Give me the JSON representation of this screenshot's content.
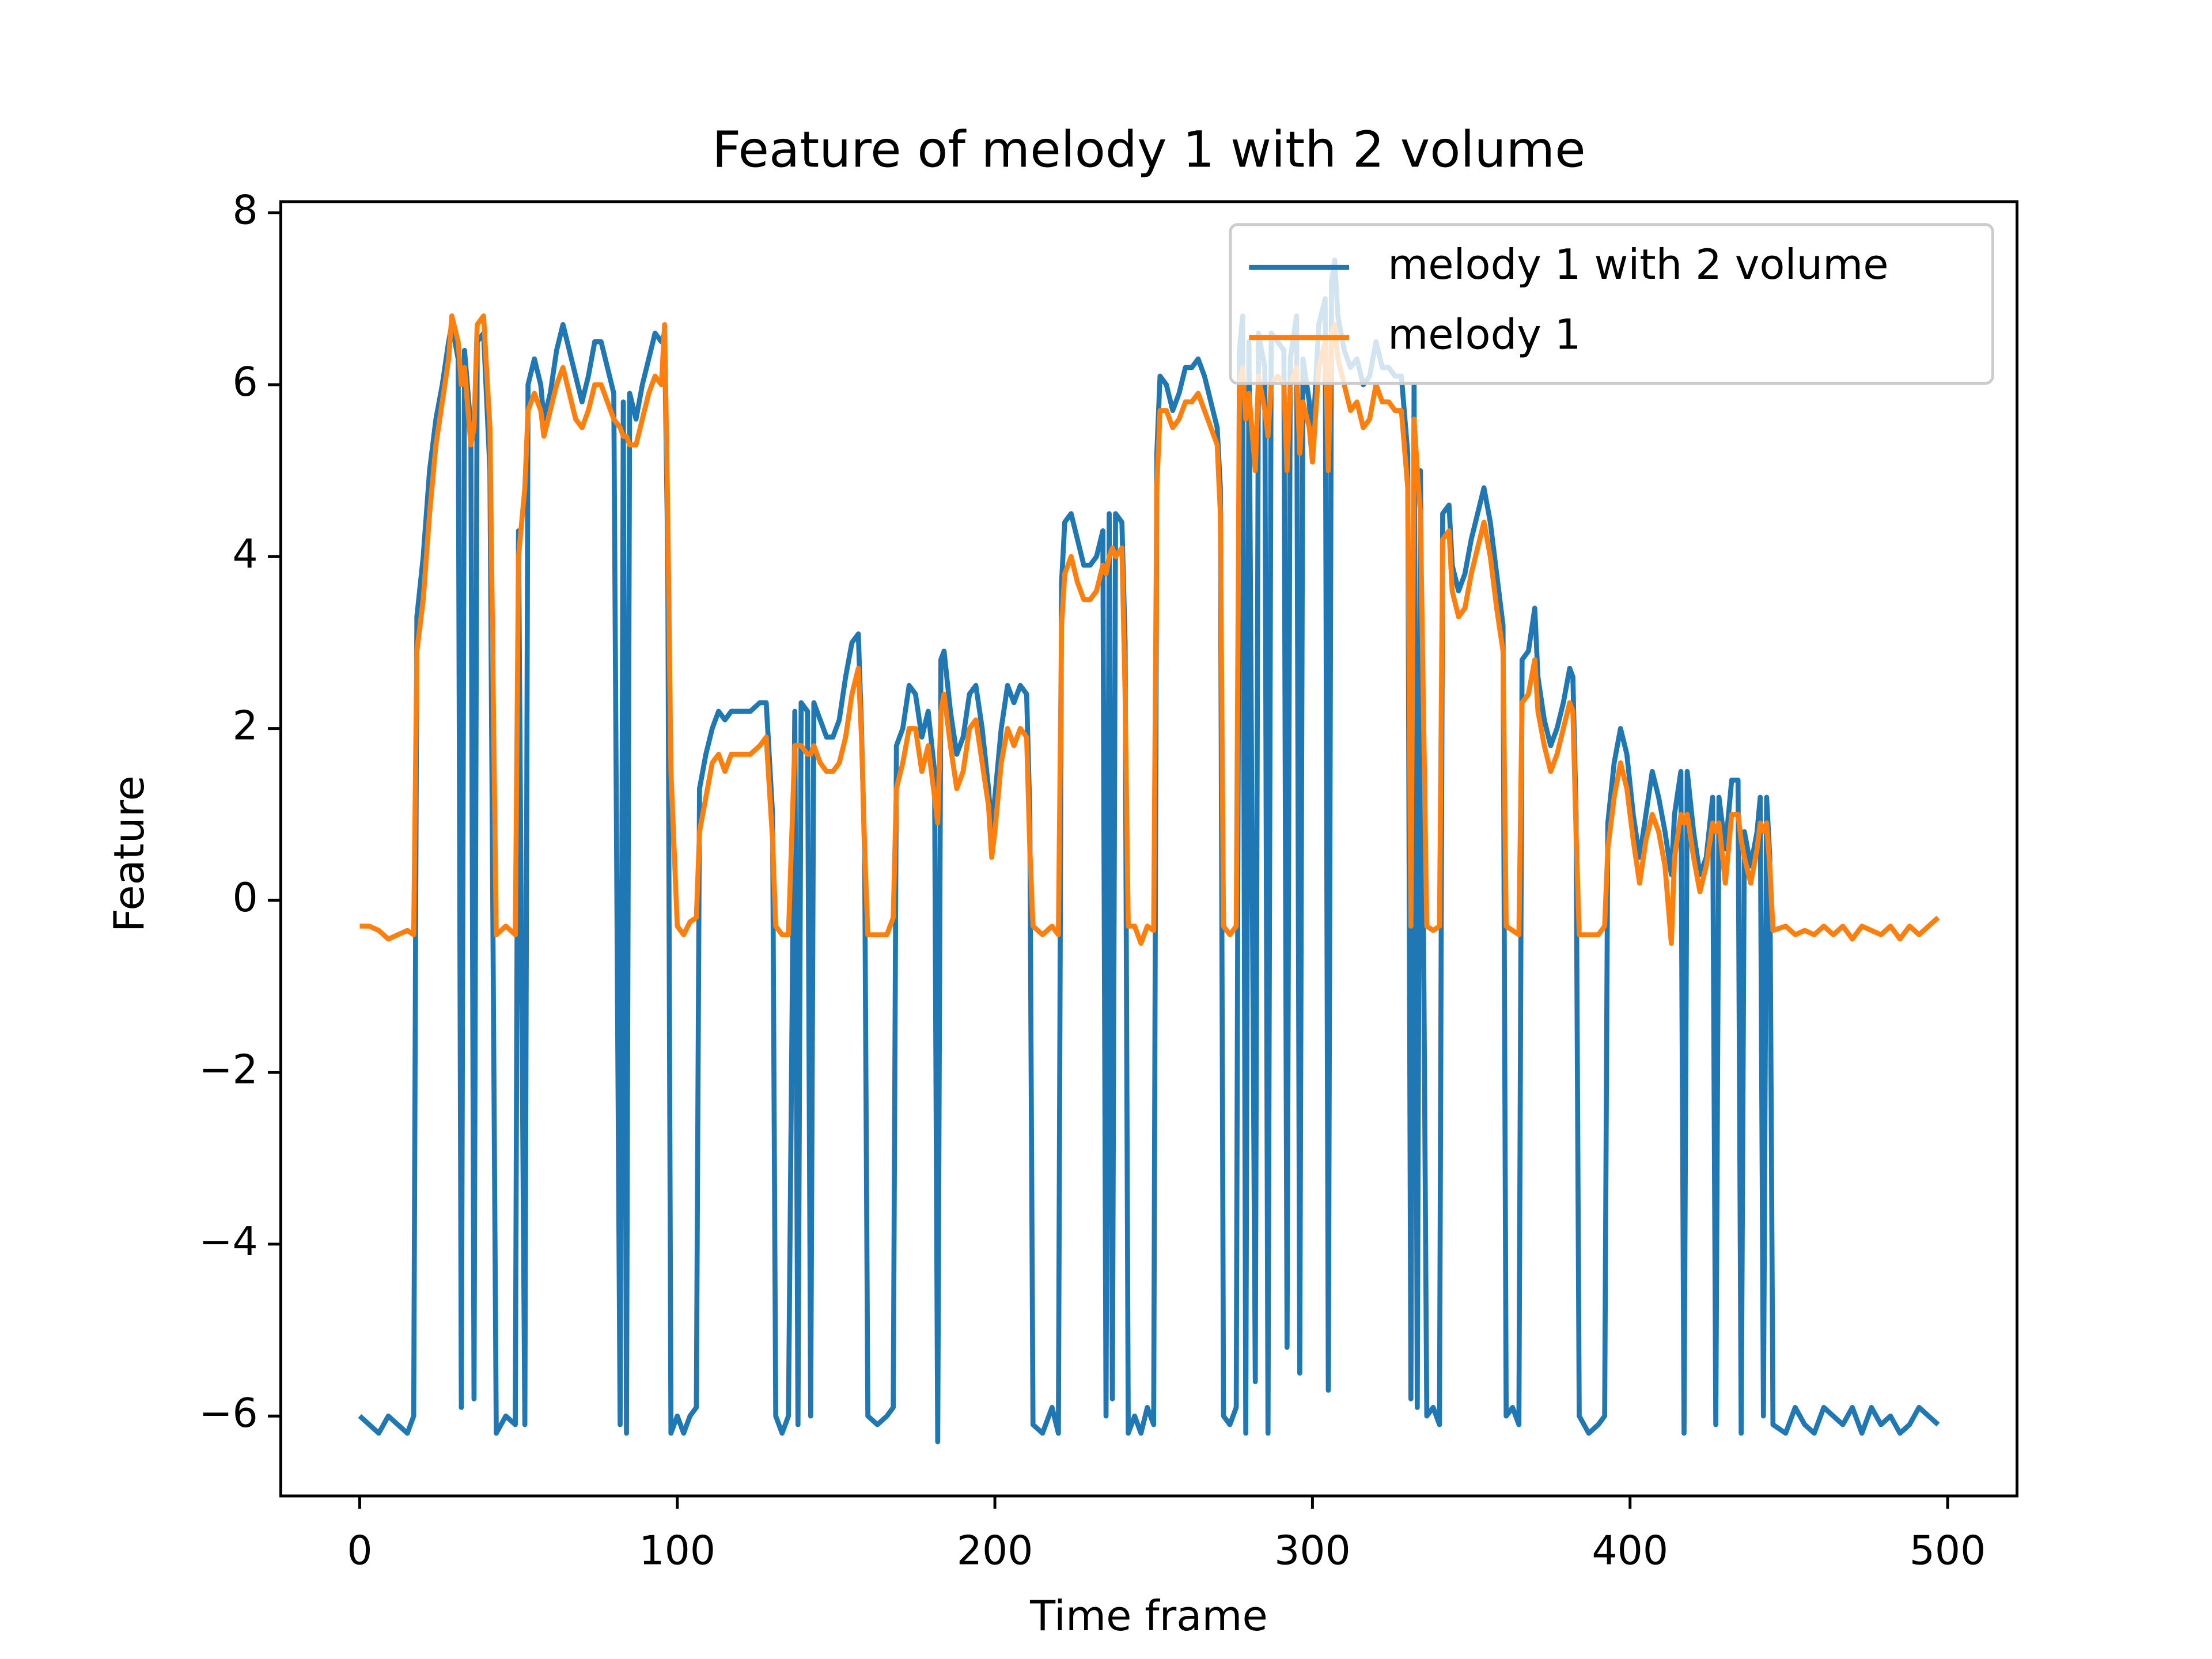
{
  "chart_data": {
    "type": "line",
    "title": "Feature of melody 1 with 2 volume",
    "x_label": "Time frame",
    "y_label": "Feature",
    "x": [
      0,
      3,
      6,
      9,
      12,
      15,
      17,
      18,
      20,
      22,
      24,
      26,
      28,
      29,
      31,
      32,
      33,
      35,
      36,
      37,
      39,
      41,
      43,
      46,
      49,
      50,
      52,
      53,
      55,
      57,
      58,
      60,
      62,
      64,
      66,
      68,
      70,
      72,
      74,
      76,
      78,
      80,
      82,
      83,
      84,
      85,
      87,
      89,
      91,
      93,
      95,
      96,
      97,
      98,
      100,
      102,
      104,
      106,
      107,
      109,
      111,
      113,
      115,
      117,
      120,
      123,
      126,
      128,
      130,
      131,
      133,
      135,
      137,
      138,
      139,
      141,
      142,
      143,
      145,
      147,
      149,
      151,
      153,
      155,
      157,
      158,
      159,
      160,
      163,
      166,
      168,
      169,
      171,
      173,
      175,
      177,
      179,
      181,
      182,
      183,
      184,
      186,
      188,
      190,
      192,
      194,
      196,
      198,
      199,
      200,
      202,
      204,
      206,
      208,
      210,
      211,
      212,
      215,
      218,
      220,
      221,
      222,
      224,
      226,
      228,
      230,
      232,
      234,
      235,
      236,
      237,
      238,
      240,
      241,
      242,
      244,
      246,
      248,
      250,
      251,
      252,
      254,
      256,
      258,
      260,
      262,
      264,
      266,
      268,
      270,
      271,
      272,
      274,
      276,
      277,
      278,
      279,
      280,
      282,
      283,
      285,
      286,
      287,
      289,
      291,
      292,
      293,
      295,
      296,
      297,
      299,
      300,
      302,
      304,
      305,
      306,
      307,
      308,
      310,
      312,
      314,
      316,
      318,
      320,
      322,
      324,
      326,
      328,
      330,
      331,
      332,
      333,
      334,
      336,
      338,
      340,
      341,
      343,
      344,
      346,
      348,
      350,
      352,
      354,
      356,
      358,
      360,
      361,
      363,
      365,
      366,
      368,
      370,
      371,
      373,
      375,
      377,
      379,
      381,
      382,
      383,
      384,
      387,
      390,
      392,
      393,
      395,
      397,
      399,
      401,
      403,
      405,
      407,
      409,
      411,
      413,
      414,
      416,
      417,
      418,
      420,
      422,
      424,
      426,
      427,
      428,
      430,
      432,
      434,
      435,
      436,
      438,
      440,
      441,
      442,
      443,
      444,
      445,
      449,
      452,
      455,
      458,
      461,
      464,
      467,
      470,
      473,
      476,
      479,
      482,
      485,
      488,
      491,
      494,
      497
    ],
    "series": [
      {
        "name": "melody 1 with 2 volume",
        "color": "#1f77b4",
        "values": [
          -6.0,
          -6.1,
          -6.2,
          -6.0,
          -6.1,
          -6.2,
          -6.0,
          3.3,
          4.0,
          5.0,
          5.6,
          6.0,
          6.5,
          6.7,
          6.3,
          -5.9,
          6.4,
          5.5,
          -5.8,
          6.5,
          6.6,
          5.0,
          -6.2,
          -6.0,
          -6.1,
          4.3,
          -6.1,
          6.0,
          6.3,
          6.0,
          5.6,
          5.9,
          6.4,
          6.7,
          6.4,
          6.1,
          5.8,
          6.1,
          6.5,
          6.5,
          6.2,
          5.9,
          -6.1,
          5.8,
          -6.2,
          5.9,
          5.6,
          6.0,
          6.3,
          6.6,
          6.5,
          6.6,
          4.0,
          -6.2,
          -6.0,
          -6.2,
          -6.0,
          -5.9,
          1.3,
          1.7,
          2.0,
          2.2,
          2.1,
          2.2,
          2.2,
          2.2,
          2.3,
          2.3,
          1.0,
          -6.0,
          -6.2,
          -6.0,
          2.2,
          -6.1,
          2.3,
          2.2,
          -6.0,
          2.3,
          2.1,
          1.9,
          1.9,
          2.1,
          2.6,
          3.0,
          3.1,
          2.0,
          0.5,
          -6.0,
          -6.1,
          -6.0,
          -5.9,
          1.8,
          2.0,
          2.5,
          2.4,
          1.9,
          2.2,
          1.5,
          -6.3,
          2.8,
          2.9,
          2.2,
          1.7,
          1.9,
          2.4,
          2.5,
          2.0,
          1.3,
          0.8,
          1.2,
          2.0,
          2.5,
          2.3,
          2.5,
          2.4,
          1.0,
          -6.1,
          -6.2,
          -5.9,
          -6.2,
          3.7,
          4.4,
          4.5,
          4.2,
          3.9,
          3.9,
          4.0,
          4.3,
          -6.0,
          4.5,
          -5.8,
          4.5,
          4.4,
          3.0,
          -6.2,
          -6.0,
          -6.2,
          -5.9,
          -6.1,
          5.2,
          6.1,
          6.0,
          5.7,
          5.9,
          6.2,
          6.2,
          6.3,
          6.1,
          5.8,
          5.5,
          4.8,
          -6.0,
          -6.1,
          -5.9,
          6.4,
          6.8,
          -6.2,
          6.5,
          -5.6,
          6.6,
          6.2,
          -6.2,
          6.6,
          6.5,
          6.4,
          -5.2,
          6.3,
          6.8,
          -5.5,
          6.3,
          5.8,
          5.3,
          6.7,
          7.0,
          -5.7,
          7.2,
          7.45,
          6.8,
          6.4,
          6.2,
          6.3,
          6.0,
          6.1,
          6.5,
          6.2,
          6.2,
          6.1,
          6.1,
          5.2,
          -5.8,
          6.0,
          -5.9,
          5.0,
          -6.0,
          -5.9,
          -6.1,
          4.5,
          4.6,
          3.9,
          3.6,
          3.8,
          4.2,
          4.5,
          4.8,
          4.4,
          3.8,
          3.2,
          -6.0,
          -5.9,
          -6.1,
          2.8,
          2.9,
          3.4,
          2.6,
          2.1,
          1.8,
          2.0,
          2.3,
          2.7,
          2.6,
          1.0,
          -6.0,
          -6.2,
          -6.1,
          -6.0,
          0.9,
          1.6,
          2.0,
          1.7,
          1.0,
          0.5,
          1.0,
          1.5,
          1.2,
          0.8,
          0.3,
          1.0,
          1.5,
          -6.2,
          1.5,
          0.8,
          0.3,
          0.5,
          1.2,
          -6.1,
          1.2,
          0.6,
          1.4,
          1.4,
          -6.2,
          0.8,
          0.4,
          0.8,
          1.2,
          -6.0,
          1.2,
          0.5,
          -6.1,
          -6.2,
          -5.9,
          -6.1,
          -6.2,
          -5.9,
          -6.0,
          -6.1,
          -5.9,
          -6.2,
          -5.9,
          -6.1,
          -6.0,
          -6.2,
          -6.1,
          -5.9,
          -6.0,
          -6.1
        ]
      },
      {
        "name": "melody 1",
        "color": "#ff7f0e",
        "values": [
          -0.3,
          -0.3,
          -0.35,
          -0.45,
          -0.4,
          -0.35,
          -0.4,
          2.9,
          3.5,
          4.5,
          5.3,
          5.8,
          6.3,
          6.8,
          6.5,
          6.0,
          6.2,
          5.3,
          5.5,
          6.7,
          6.8,
          5.5,
          -0.4,
          -0.3,
          -0.4,
          4.0,
          4.8,
          5.7,
          5.9,
          5.7,
          5.4,
          5.7,
          6.0,
          6.2,
          5.9,
          5.6,
          5.5,
          5.7,
          6.0,
          6.0,
          5.8,
          5.6,
          5.5,
          5.4,
          5.4,
          5.3,
          5.3,
          5.6,
          5.9,
          6.1,
          6.0,
          6.7,
          4.5,
          1.5,
          -0.3,
          -0.4,
          -0.25,
          -0.2,
          0.8,
          1.2,
          1.6,
          1.7,
          1.5,
          1.7,
          1.7,
          1.7,
          1.8,
          1.9,
          0.7,
          -0.3,
          -0.4,
          -0.4,
          1.8,
          1.8,
          1.8,
          1.7,
          1.7,
          1.8,
          1.6,
          1.5,
          1.5,
          1.6,
          1.9,
          2.4,
          2.7,
          1.9,
          0.6,
          -0.4,
          -0.4,
          -0.4,
          -0.2,
          1.3,
          1.6,
          2.0,
          2.0,
          1.5,
          1.8,
          1.2,
          0.9,
          2.2,
          2.4,
          1.8,
          1.3,
          1.5,
          2.0,
          2.1,
          1.6,
          1.1,
          0.5,
          0.8,
          1.6,
          2.0,
          1.8,
          2.0,
          1.9,
          0.6,
          -0.3,
          -0.4,
          -0.3,
          -0.4,
          3.2,
          3.8,
          4.0,
          3.7,
          3.5,
          3.5,
          3.6,
          3.9,
          3.8,
          4.0,
          4.1,
          4.0,
          4.1,
          2.4,
          -0.3,
          -0.3,
          -0.5,
          -0.3,
          -0.35,
          4.8,
          5.7,
          5.7,
          5.5,
          5.6,
          5.8,
          5.8,
          5.9,
          5.7,
          5.5,
          5.3,
          4.5,
          -0.3,
          -0.4,
          -0.3,
          6.0,
          6.2,
          5.6,
          5.9,
          5.0,
          6.1,
          5.7,
          5.4,
          6.0,
          6.1,
          6.0,
          5.0,
          6.0,
          6.2,
          5.2,
          5.8,
          5.5,
          5.1,
          6.2,
          6.5,
          5.0,
          6.6,
          6.7,
          6.3,
          6.0,
          5.7,
          5.8,
          5.5,
          5.6,
          6.0,
          5.8,
          5.8,
          5.7,
          5.7,
          4.8,
          -0.3,
          5.6,
          5.0,
          4.5,
          -0.3,
          -0.35,
          -0.3,
          4.2,
          4.3,
          3.6,
          3.3,
          3.4,
          3.8,
          4.1,
          4.4,
          4.0,
          3.4,
          2.9,
          -0.3,
          -0.35,
          -0.4,
          2.3,
          2.4,
          2.8,
          2.2,
          1.8,
          1.5,
          1.7,
          2.0,
          2.3,
          2.2,
          0.8,
          -0.4,
          -0.4,
          -0.4,
          -0.3,
          0.6,
          1.2,
          1.6,
          1.3,
          0.7,
          0.2,
          0.7,
          1.0,
          0.8,
          0.4,
          -0.5,
          0.5,
          1.0,
          0.9,
          1.0,
          0.5,
          0.1,
          0.4,
          0.9,
          0.8,
          0.9,
          0.2,
          1.0,
          1.0,
          0.7,
          0.5,
          0.2,
          0.6,
          0.9,
          0.8,
          0.9,
          0.4,
          -0.35,
          -0.3,
          -0.4,
          -0.35,
          -0.4,
          -0.3,
          -0.4,
          -0.3,
          -0.45,
          -0.3,
          -0.35,
          -0.4,
          -0.3,
          -0.45,
          -0.3,
          -0.4,
          -0.3,
          -0.2
        ]
      }
    ],
    "xlim": [
      -24.85,
      521.85
    ],
    "ylim": [
      -6.93,
      8.13
    ],
    "xticks": [
      0,
      100,
      200,
      300,
      400,
      500
    ],
    "yticks": [
      {
        "value": -6,
        "label": "−6"
      },
      {
        "value": -4,
        "label": "−4"
      },
      {
        "value": -2,
        "label": "−2"
      },
      0,
      2,
      4,
      6,
      8
    ],
    "legend": "upper right"
  }
}
